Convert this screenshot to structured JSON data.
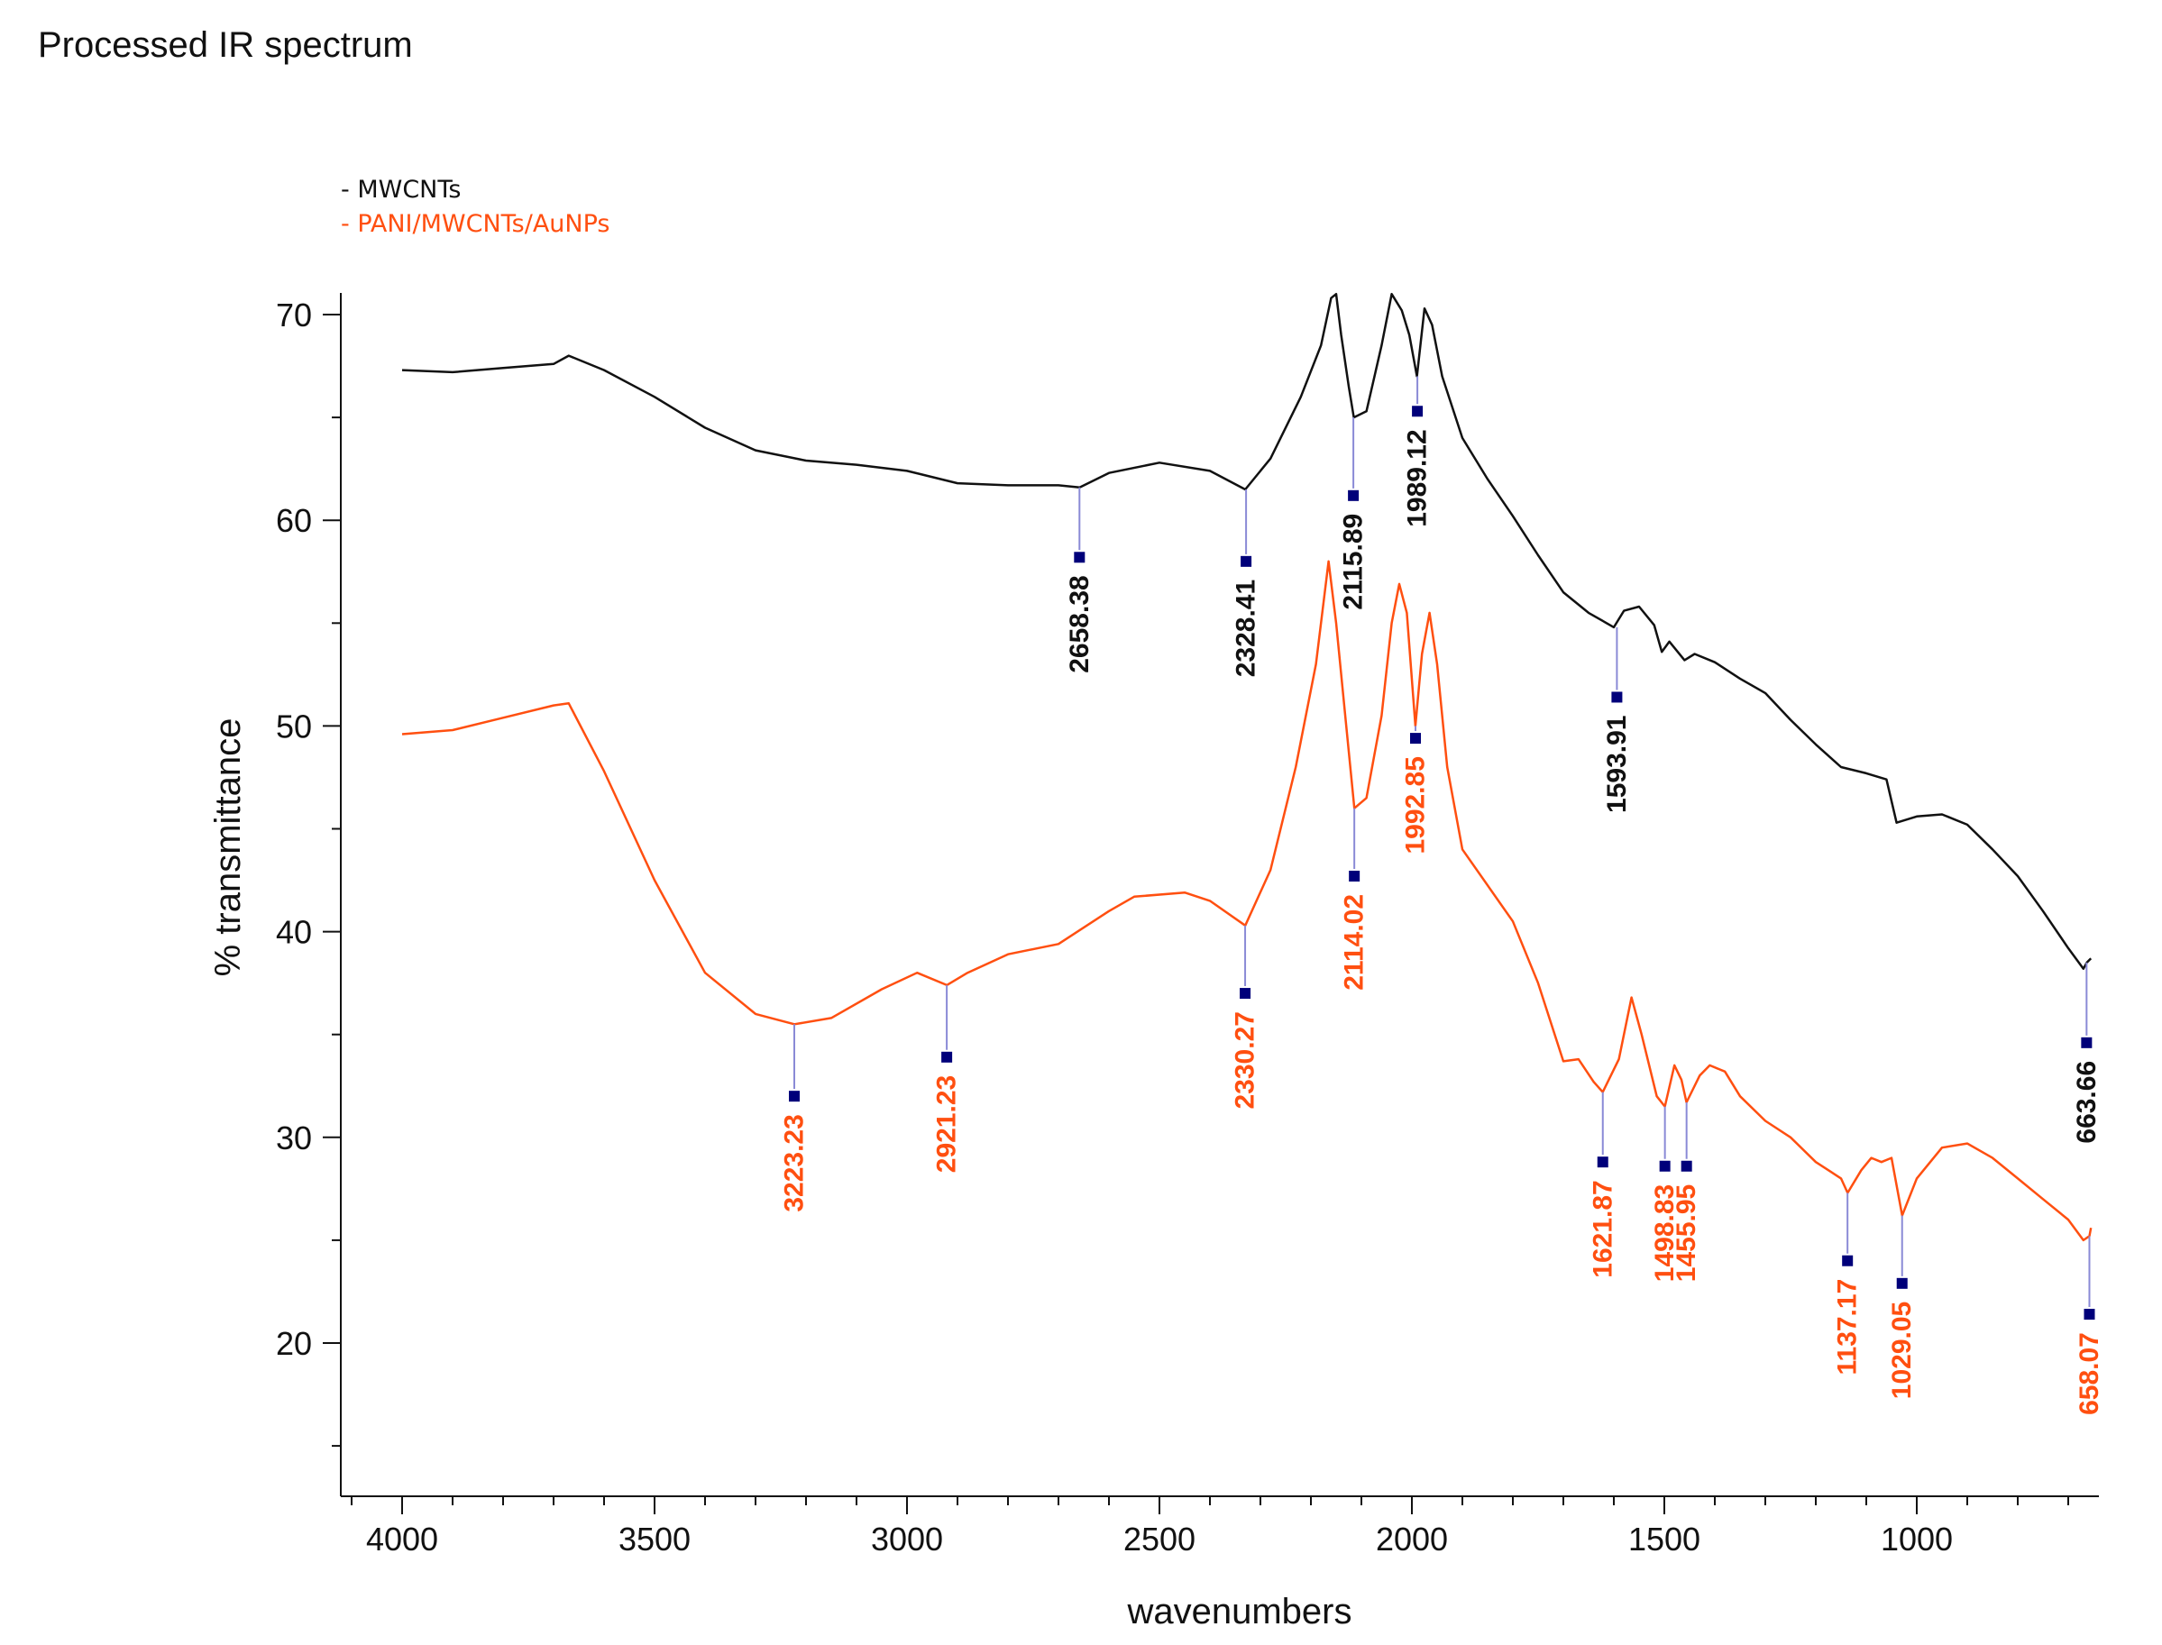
{
  "title": "Processed IR spectrum",
  "colors": {
    "mwcnt": "#111111",
    "pani": "#ff4f10",
    "marker": "#00007a",
    "leader": "#8a8ad6",
    "axis": "#111111"
  },
  "chart_data": {
    "type": "line",
    "title": "Processed IR spectrum",
    "xlabel": "wavenumbers",
    "ylabel": "% transmittance",
    "xlim": [
      4000,
      600
    ],
    "ylim": [
      13.5,
      71
    ],
    "xticks": [
      4000,
      3500,
      3000,
      2500,
      2000,
      1500,
      1000
    ],
    "yticks": [
      20,
      30,
      40,
      50,
      60,
      70
    ],
    "legend_position": "top-left",
    "series": [
      {
        "name": "- MWCNTs",
        "color_key": "mwcnt",
        "points": [
          [
            4000,
            67.3
          ],
          [
            3900,
            67.2
          ],
          [
            3800,
            67.4
          ],
          [
            3700,
            67.6
          ],
          [
            3670,
            68.0
          ],
          [
            3600,
            67.3
          ],
          [
            3500,
            66.0
          ],
          [
            3400,
            64.5
          ],
          [
            3300,
            63.4
          ],
          [
            3200,
            62.9
          ],
          [
            3100,
            62.7
          ],
          [
            3000,
            62.4
          ],
          [
            2900,
            61.8
          ],
          [
            2800,
            61.7
          ],
          [
            2700,
            61.7
          ],
          [
            2658,
            61.6
          ],
          [
            2600,
            62.3
          ],
          [
            2500,
            62.8
          ],
          [
            2400,
            62.4
          ],
          [
            2330,
            61.5
          ],
          [
            2280,
            63.0
          ],
          [
            2220,
            66.0
          ],
          [
            2180,
            68.5
          ],
          [
            2160,
            70.8
          ],
          [
            2150,
            71.0
          ],
          [
            2140,
            69.0
          ],
          [
            2125,
            66.5
          ],
          [
            2115,
            65.0
          ],
          [
            2090,
            65.3
          ],
          [
            2060,
            68.5
          ],
          [
            2040,
            71.0
          ],
          [
            2020,
            70.2
          ],
          [
            2005,
            69.0
          ],
          [
            1990,
            67.0
          ],
          [
            1975,
            70.3
          ],
          [
            1960,
            69.5
          ],
          [
            1940,
            67.0
          ],
          [
            1900,
            64.0
          ],
          [
            1850,
            62.0
          ],
          [
            1800,
            60.2
          ],
          [
            1750,
            58.3
          ],
          [
            1700,
            56.5
          ],
          [
            1650,
            55.5
          ],
          [
            1600,
            54.8
          ],
          [
            1580,
            55.6
          ],
          [
            1550,
            55.8
          ],
          [
            1520,
            54.9
          ],
          [
            1505,
            53.6
          ],
          [
            1490,
            54.1
          ],
          [
            1460,
            53.2
          ],
          [
            1440,
            53.5
          ],
          [
            1400,
            53.1
          ],
          [
            1350,
            52.3
          ],
          [
            1300,
            51.6
          ],
          [
            1250,
            50.3
          ],
          [
            1200,
            49.1
          ],
          [
            1150,
            48.0
          ],
          [
            1100,
            47.7
          ],
          [
            1060,
            47.4
          ],
          [
            1040,
            45.3
          ],
          [
            1000,
            45.6
          ],
          [
            950,
            45.7
          ],
          [
            900,
            45.2
          ],
          [
            850,
            44.0
          ],
          [
            800,
            42.7
          ],
          [
            750,
            41.0
          ],
          [
            700,
            39.2
          ],
          [
            670,
            38.2
          ],
          [
            663,
            38.5
          ],
          [
            655,
            38.7
          ]
        ]
      },
      {
        "name": "- PANI/MWCNTs/AuNPs",
        "color_key": "pani",
        "points": [
          [
            4000,
            49.6
          ],
          [
            3900,
            49.8
          ],
          [
            3800,
            50.4
          ],
          [
            3700,
            51.0
          ],
          [
            3670,
            51.1
          ],
          [
            3600,
            47.8
          ],
          [
            3500,
            42.5
          ],
          [
            3400,
            38.0
          ],
          [
            3300,
            36.0
          ],
          [
            3223,
            35.5
          ],
          [
            3150,
            35.8
          ],
          [
            3050,
            37.2
          ],
          [
            2980,
            38.0
          ],
          [
            2921,
            37.4
          ],
          [
            2880,
            38.0
          ],
          [
            2800,
            38.9
          ],
          [
            2700,
            39.4
          ],
          [
            2600,
            41.0
          ],
          [
            2550,
            41.7
          ],
          [
            2450,
            41.9
          ],
          [
            2400,
            41.5
          ],
          [
            2330,
            40.3
          ],
          [
            2280,
            43.0
          ],
          [
            2230,
            48.0
          ],
          [
            2190,
            53.0
          ],
          [
            2165,
            58.0
          ],
          [
            2150,
            55.0
          ],
          [
            2130,
            50.0
          ],
          [
            2114,
            46.0
          ],
          [
            2090,
            46.5
          ],
          [
            2060,
            50.5
          ],
          [
            2040,
            55.0
          ],
          [
            2025,
            56.9
          ],
          [
            2010,
            55.5
          ],
          [
            1993,
            50.0
          ],
          [
            1980,
            53.5
          ],
          [
            1965,
            55.5
          ],
          [
            1950,
            53.0
          ],
          [
            1930,
            48.0
          ],
          [
            1900,
            44.0
          ],
          [
            1800,
            40.5
          ],
          [
            1750,
            37.5
          ],
          [
            1700,
            33.7
          ],
          [
            1670,
            33.8
          ],
          [
            1640,
            32.7
          ],
          [
            1622,
            32.2
          ],
          [
            1590,
            33.8
          ],
          [
            1565,
            36.8
          ],
          [
            1545,
            35.0
          ],
          [
            1515,
            32.0
          ],
          [
            1499,
            31.5
          ],
          [
            1480,
            33.5
          ],
          [
            1466,
            32.8
          ],
          [
            1456,
            31.7
          ],
          [
            1430,
            33.0
          ],
          [
            1410,
            33.5
          ],
          [
            1380,
            33.2
          ],
          [
            1350,
            32.0
          ],
          [
            1300,
            30.8
          ],
          [
            1250,
            30.0
          ],
          [
            1200,
            28.8
          ],
          [
            1150,
            28.0
          ],
          [
            1137,
            27.3
          ],
          [
            1110,
            28.4
          ],
          [
            1090,
            29.0
          ],
          [
            1070,
            28.8
          ],
          [
            1050,
            29.0
          ],
          [
            1029,
            26.2
          ],
          [
            1000,
            28.0
          ],
          [
            950,
            29.5
          ],
          [
            900,
            29.7
          ],
          [
            850,
            29.0
          ],
          [
            800,
            28.0
          ],
          [
            750,
            27.0
          ],
          [
            700,
            26.0
          ],
          [
            670,
            25.0
          ],
          [
            658,
            25.2
          ],
          [
            655,
            25.6
          ]
        ]
      }
    ],
    "annotations": [
      {
        "label": "2658.38",
        "x": 2658.38,
        "y": 61.6,
        "marker_y": 58.2,
        "series": "mwcnt"
      },
      {
        "label": "2328.41",
        "x": 2328.41,
        "y": 61.5,
        "marker_y": 58.0,
        "series": "mwcnt"
      },
      {
        "label": "2115.89",
        "x": 2115.89,
        "y": 65.0,
        "marker_y": 61.2,
        "series": "mwcnt"
      },
      {
        "label": "1989.12",
        "x": 1989.12,
        "y": 67.0,
        "marker_y": 65.3,
        "series": "mwcnt"
      },
      {
        "label": "1593.91",
        "x": 1593.91,
        "y": 54.8,
        "marker_y": 51.4,
        "series": "mwcnt"
      },
      {
        "label": "663.66",
        "x": 663.66,
        "y": 38.5,
        "marker_y": 34.6,
        "series": "mwcnt"
      },
      {
        "label": "3223.23",
        "x": 3223.23,
        "y": 35.5,
        "marker_y": 32.0,
        "series": "pani"
      },
      {
        "label": "2921.23",
        "x": 2921.23,
        "y": 37.4,
        "marker_y": 33.9,
        "series": "pani"
      },
      {
        "label": "2330.27",
        "x": 2330.27,
        "y": 40.3,
        "marker_y": 37.0,
        "series": "pani"
      },
      {
        "label": "2114.02",
        "x": 2114.02,
        "y": 46.0,
        "marker_y": 42.7,
        "series": "pani"
      },
      {
        "label": "1992.85",
        "x": 1992.85,
        "y": 50.0,
        "marker_y": 49.4,
        "series": "pani"
      },
      {
        "label": "1621.87",
        "x": 1621.87,
        "y": 32.2,
        "marker_y": 28.8,
        "series": "pani"
      },
      {
        "label": "1498.83",
        "x": 1498.83,
        "y": 31.5,
        "marker_y": 28.6,
        "series": "pani"
      },
      {
        "label": "1455.95",
        "x": 1455.95,
        "y": 31.7,
        "marker_y": 28.6,
        "series": "pani"
      },
      {
        "label": "1137.17",
        "x": 1137.17,
        "y": 27.3,
        "marker_y": 24.0,
        "series": "pani"
      },
      {
        "label": "1029.05",
        "x": 1029.05,
        "y": 26.2,
        "marker_y": 22.9,
        "series": "pani"
      },
      {
        "label": "658.07",
        "x": 658.07,
        "y": 25.2,
        "marker_y": 21.4,
        "series": "pani"
      }
    ]
  }
}
